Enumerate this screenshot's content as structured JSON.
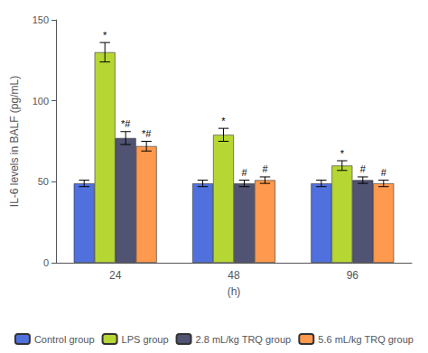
{
  "chart_data": {
    "type": "bar",
    "categories": [
      "24",
      "48",
      "96"
    ],
    "xlabel": "(h)",
    "ylabel": "IL-6 levels in BALF (pg/mL)",
    "series": [
      {
        "name": "Control group",
        "values": [
          49,
          49,
          49
        ],
        "errors": [
          2,
          2,
          2
        ]
      },
      {
        "name": "LPS group",
        "values": [
          130,
          79,
          60
        ],
        "errors": [
          6,
          4,
          3
        ],
        "annotations": [
          "*",
          "*",
          "*"
        ]
      },
      {
        "name": "2.8 mL/kg TRQ group",
        "values": [
          77,
          49,
          51
        ],
        "errors": [
          4,
          2,
          2
        ],
        "annotations": [
          "*#",
          "#",
          "#"
        ]
      },
      {
        "name": "5.6 mL/kg TRQ group",
        "values": [
          72,
          51,
          49
        ],
        "errors": [
          3,
          2,
          2
        ],
        "annotations": [
          "*#",
          "#",
          "#"
        ]
      }
    ],
    "ylim": [
      0,
      150
    ],
    "yticks": [
      0,
      50,
      100,
      150
    ],
    "grid": false,
    "legend": "bottom"
  }
}
